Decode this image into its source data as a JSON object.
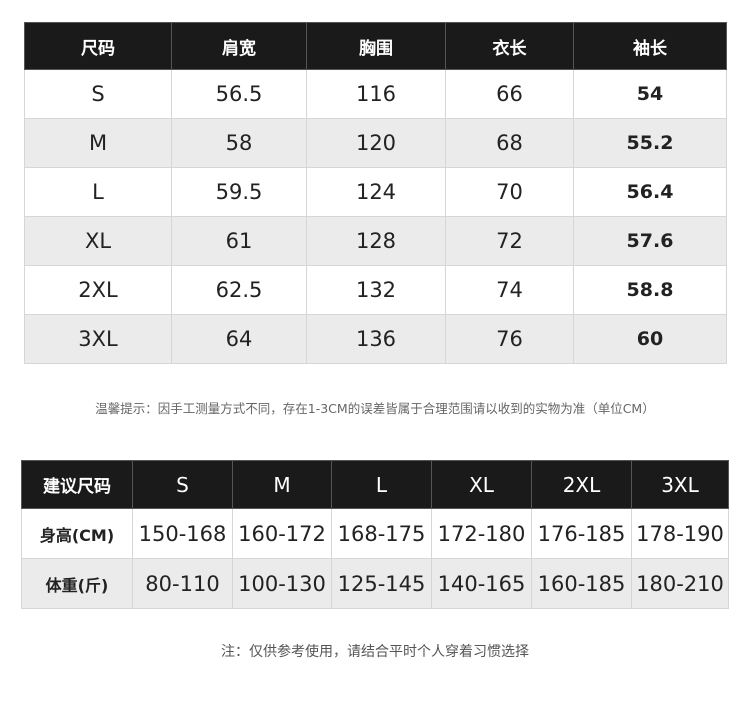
{
  "size_chart": {
    "headers": [
      "尺码",
      "肩宽",
      "胸围",
      "衣长",
      "袖长"
    ],
    "rows": [
      [
        "S",
        "56.5",
        "116",
        "66",
        "54"
      ],
      [
        "M",
        "58",
        "120",
        "68",
        "55.2"
      ],
      [
        "L",
        "59.5",
        "124",
        "70",
        "56.4"
      ],
      [
        "XL",
        "61",
        "128",
        "72",
        "57.6"
      ],
      [
        "2XL",
        "62.5",
        "132",
        "74",
        "58.8"
      ],
      [
        "3XL",
        "64",
        "136",
        "76",
        "60"
      ]
    ]
  },
  "tip": "温馨提示：因手工测量方式不同，存在1-3CM的误差皆属于合理范围请以收到的实物为准（单位CM）",
  "recommend_chart": {
    "headers": [
      "建议尺码",
      "S",
      "M",
      "L",
      "XL",
      "2XL",
      "3XL"
    ],
    "rows": [
      [
        "身高(CM)",
        "150-168",
        "160-172",
        "168-175",
        "172-180",
        "176-185",
        "178-190"
      ],
      [
        "体重(斤)",
        "80-110",
        "100-130",
        "125-145",
        "140-165",
        "160-185",
        "180-210"
      ]
    ]
  },
  "footnote": "注：仅供参考使用，请结合平时个人穿着习惯选择"
}
